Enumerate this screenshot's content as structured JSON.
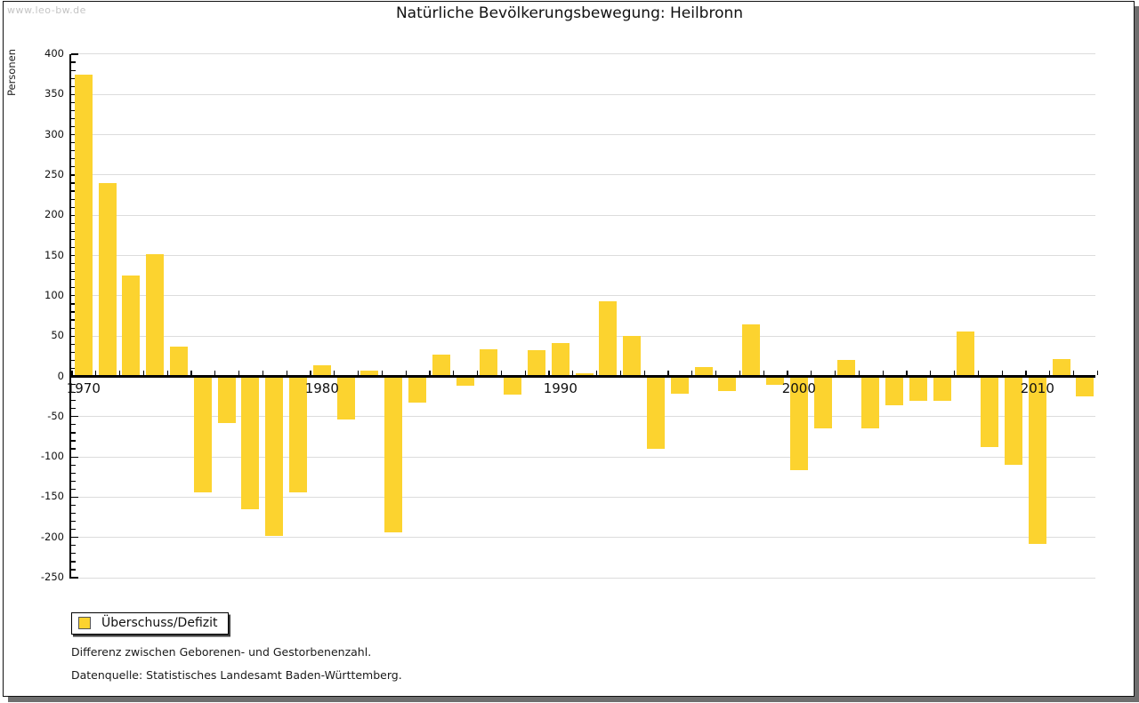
{
  "watermark": "www.leo-bw.de",
  "title": "Natürliche Bevölkerungsbewegung: Heilbronn",
  "y_axis_label": "Personen",
  "legend": {
    "label": "Überschuss/Defizit"
  },
  "notes": {
    "line1": "Differenz zwischen Geborenen- und Gestorbenenzahl.",
    "line2": "Datenquelle: Statistisches Landesamt Baden-Württemberg."
  },
  "colors": {
    "bar": "#fcd32f",
    "grid": "#dcdcdc",
    "axis": "#000000",
    "watermark": "#c4c4c4",
    "frame_shadow": "#6f6f6f"
  },
  "chart_data": {
    "type": "bar",
    "title": "Natürliche Bevölkerungsbewegung: Heilbronn",
    "ylabel": "Personen",
    "series_name": "Überschuss/Defizit",
    "x": [
      1970,
      1971,
      1972,
      1973,
      1974,
      1975,
      1976,
      1977,
      1978,
      1979,
      1980,
      1981,
      1982,
      1983,
      1984,
      1985,
      1986,
      1987,
      1988,
      1989,
      1990,
      1991,
      1992,
      1993,
      1994,
      1995,
      1996,
      1997,
      1998,
      1999,
      2000,
      2001,
      2002,
      2003,
      2004,
      2005,
      2006,
      2007,
      2008,
      2009,
      2010,
      2011,
      2012
    ],
    "values": [
      375,
      240,
      125,
      152,
      37,
      -144,
      -58,
      -165,
      -198,
      -144,
      14,
      -54,
      7,
      -194,
      -33,
      27,
      -12,
      34,
      -23,
      33,
      41,
      4,
      93,
      50,
      -90,
      -22,
      12,
      -18,
      64,
      -11,
      -116,
      -65,
      20,
      -65,
      -36,
      -30,
      -30,
      56,
      -88,
      -110,
      -208,
      21,
      -25
    ],
    "ylim": [
      -250,
      400
    ],
    "ytick_step": 50,
    "ytick_minor_step": 10,
    "y_tick_labels": [
      400,
      350,
      300,
      250,
      200,
      150,
      100,
      50,
      0,
      -50,
      -100,
      -150,
      -200,
      -250
    ],
    "x_tick_labels": [
      1970,
      1980,
      1990,
      2000,
      2010
    ],
    "grid": true,
    "legend_position": "bottom-left"
  }
}
